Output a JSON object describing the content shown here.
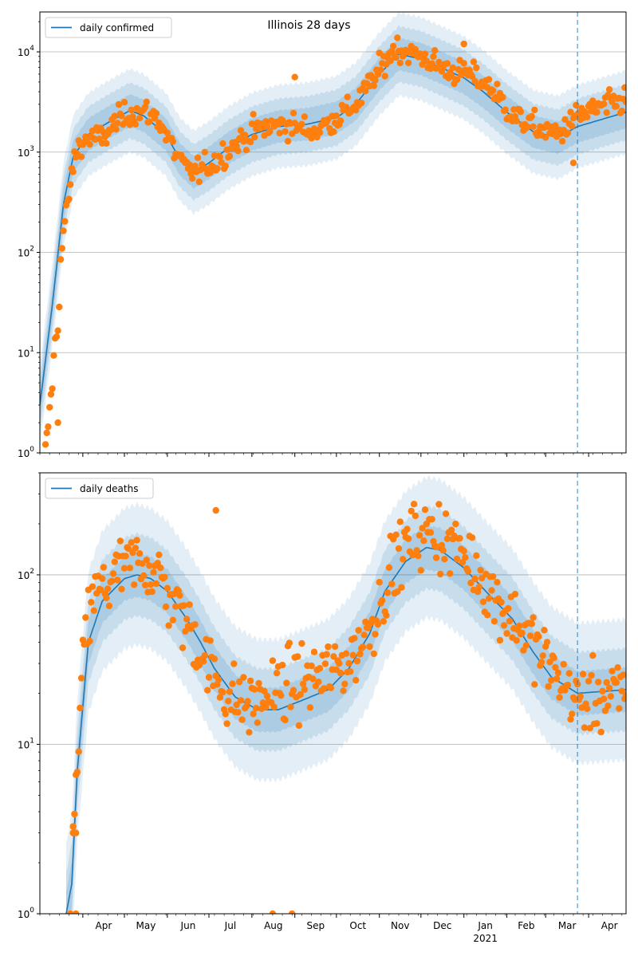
{
  "chart_data": [
    {
      "type": "line",
      "title": "Illinois 28 days",
      "legend": {
        "label": "daily confirmed",
        "placement": "top-left"
      },
      "yscale": "log",
      "ylim": [
        1,
        25000
      ],
      "yticks": [
        {
          "v": 1,
          "exp": "0"
        },
        {
          "v": 10,
          "exp": "1"
        },
        {
          "v": 100,
          "exp": "2"
        },
        {
          "v": 1000,
          "exp": "3"
        },
        {
          "v": 10000,
          "exp": "4"
        }
      ],
      "xlim": [
        "2020-03-01",
        "2021-04-28"
      ],
      "xticks": [
        {
          "date": "2020-04-01",
          "label": ""
        },
        {
          "date": "2020-05-01",
          "label": ""
        },
        {
          "date": "2020-06-01",
          "label": ""
        },
        {
          "date": "2020-07-01",
          "label": ""
        },
        {
          "date": "2020-08-01",
          "label": ""
        },
        {
          "date": "2020-09-01",
          "label": ""
        },
        {
          "date": "2020-10-01",
          "label": ""
        },
        {
          "date": "2020-11-01",
          "label": ""
        },
        {
          "date": "2020-12-01",
          "label": ""
        },
        {
          "date": "2021-01-01",
          "label": ""
        },
        {
          "date": "2021-02-01",
          "label": ""
        },
        {
          "date": "2021-03-01",
          "label": ""
        },
        {
          "date": "2021-04-01",
          "label": ""
        }
      ],
      "vline": "2021-03-24",
      "grid": "horizontal major",
      "colors": {
        "line": "#1f77b4",
        "points": "#ff7f0e",
        "band": "#1f77b4"
      },
      "series": {
        "model_anchors": [
          [
            "2020-03-01",
            3
          ],
          [
            "2020-03-10",
            30
          ],
          [
            "2020-03-18",
            300
          ],
          [
            "2020-03-25",
            900
          ],
          [
            "2020-04-05",
            1500
          ],
          [
            "2020-04-20",
            2000
          ],
          [
            "2020-05-05",
            2600
          ],
          [
            "2020-05-15",
            2300
          ],
          [
            "2020-05-31",
            1500
          ],
          [
            "2020-06-10",
            850
          ],
          [
            "2020-06-20",
            630
          ],
          [
            "2020-07-01",
            780
          ],
          [
            "2020-07-15",
            1100
          ],
          [
            "2020-08-01",
            1500
          ],
          [
            "2020-08-20",
            1800
          ],
          [
            "2020-09-10",
            1900
          ],
          [
            "2020-10-01",
            2200
          ],
          [
            "2020-10-15",
            3000
          ],
          [
            "2020-11-01",
            6000
          ],
          [
            "2020-11-15",
            9500
          ],
          [
            "2020-12-01",
            8500
          ],
          [
            "2020-12-15",
            7000
          ],
          [
            "2021-01-01",
            5500
          ],
          [
            "2021-01-15",
            4000
          ],
          [
            "2021-02-01",
            2500
          ],
          [
            "2021-02-20",
            1600
          ],
          [
            "2021-03-10",
            1400
          ],
          [
            "2021-03-24",
            1800
          ],
          [
            "2021-04-28",
            2500
          ]
        ],
        "observed_anchors": [
          [
            "2020-03-05",
            1
          ],
          [
            "2020-03-10",
            5
          ],
          [
            "2020-03-12",
            13
          ],
          [
            "2020-03-14",
            18
          ],
          [
            "2020-03-16",
            80
          ],
          [
            "2020-03-18",
            160
          ],
          [
            "2020-03-21",
            290
          ],
          [
            "2020-03-24",
            600
          ],
          [
            "2020-03-28",
            1100
          ],
          [
            "2020-04-05",
            1400
          ],
          [
            "2020-04-15",
            1350
          ],
          [
            "2020-04-25",
            2000
          ],
          [
            "2020-05-05",
            2500
          ],
          [
            "2020-05-15",
            2500
          ],
          [
            "2020-05-25",
            2200
          ],
          [
            "2020-06-05",
            1100
          ],
          [
            "2020-06-15",
            650
          ],
          [
            "2020-06-25",
            650
          ],
          [
            "2020-07-05",
            800
          ],
          [
            "2020-07-20",
            1200
          ],
          [
            "2020-08-05",
            1700
          ],
          [
            "2020-08-25",
            1900
          ],
          [
            "2020-09-15",
            1600
          ],
          [
            "2020-10-01",
            2200
          ],
          [
            "2020-10-15",
            3000
          ],
          [
            "2020-11-01",
            6500
          ],
          [
            "2020-11-12",
            11000
          ],
          [
            "2020-12-01",
            9000
          ],
          [
            "2020-12-20",
            6500
          ],
          [
            "2021-01-05",
            6000
          ],
          [
            "2021-01-20",
            4500
          ],
          [
            "2021-02-05",
            2300
          ],
          [
            "2021-02-25",
            1700
          ],
          [
            "2021-03-10",
            1500
          ],
          [
            "2021-03-24",
            2300
          ],
          [
            "2021-04-10",
            2800
          ],
          [
            "2021-04-28",
            3300
          ]
        ],
        "outliers": [
          [
            "2020-03-14",
            2
          ],
          [
            "2020-09-01",
            5600
          ],
          [
            "2021-01-01",
            12000
          ],
          [
            "2021-03-21",
            780
          ]
        ],
        "band_inner": 1.45,
        "band_mid": 1.9,
        "band_outer": 2.6
      }
    },
    {
      "type": "line",
      "title": "",
      "legend": {
        "label": "daily deaths",
        "placement": "top-left"
      },
      "yscale": "log",
      "ylim": [
        1,
        400
      ],
      "yticks": [
        {
          "v": 1,
          "exp": "0"
        },
        {
          "v": 10,
          "exp": "1"
        },
        {
          "v": 100,
          "exp": "2"
        }
      ],
      "xlim": [
        "2020-03-01",
        "2021-04-28"
      ],
      "xticks": [
        {
          "date": "2020-04-01",
          "label": "Apr"
        },
        {
          "date": "2020-05-01",
          "label": "May"
        },
        {
          "date": "2020-06-01",
          "label": "Jun"
        },
        {
          "date": "2020-07-01",
          "label": "Jul"
        },
        {
          "date": "2020-08-01",
          "label": "Aug"
        },
        {
          "date": "2020-09-01",
          "label": "Sep"
        },
        {
          "date": "2020-10-01",
          "label": "Oct"
        },
        {
          "date": "2020-11-01",
          "label": "Nov"
        },
        {
          "date": "2020-12-01",
          "label": "Dec"
        },
        {
          "date": "2021-01-01",
          "label": "Jan",
          "sublabel": "2021"
        },
        {
          "date": "2021-02-01",
          "label": "Feb"
        },
        {
          "date": "2021-03-01",
          "label": "Mar"
        },
        {
          "date": "2021-04-01",
          "label": "Apr"
        }
      ],
      "vline": "2021-03-24",
      "grid": "horizontal major",
      "colors": {
        "line": "#1f77b4",
        "points": "#ff7f0e",
        "band": "#1f77b4"
      },
      "series": {
        "model_anchors": [
          [
            "2020-03-20",
            1
          ],
          [
            "2020-03-24",
            1.5
          ],
          [
            "2020-03-28",
            7
          ],
          [
            "2020-04-05",
            40
          ],
          [
            "2020-04-15",
            70
          ],
          [
            "2020-05-01",
            95
          ],
          [
            "2020-05-10",
            100
          ],
          [
            "2020-05-20",
            95
          ],
          [
            "2020-06-01",
            80
          ],
          [
            "2020-06-15",
            55
          ],
          [
            "2020-06-25",
            40
          ],
          [
            "2020-07-05",
            28
          ],
          [
            "2020-07-20",
            19
          ],
          [
            "2020-08-05",
            16
          ],
          [
            "2020-08-20",
            16
          ],
          [
            "2020-09-05",
            18
          ],
          [
            "2020-09-25",
            21
          ],
          [
            "2020-10-10",
            28
          ],
          [
            "2020-10-25",
            45
          ],
          [
            "2020-11-05",
            80
          ],
          [
            "2020-11-20",
            120
          ],
          [
            "2020-12-05",
            145
          ],
          [
            "2020-12-15",
            140
          ],
          [
            "2021-01-01",
            110
          ],
          [
            "2021-01-20",
            75
          ],
          [
            "2021-02-05",
            55
          ],
          [
            "2021-02-20",
            35
          ],
          [
            "2021-03-05",
            25
          ],
          [
            "2021-03-24",
            20
          ],
          [
            "2021-04-28",
            21
          ]
        ],
        "observed_anchors": [
          [
            "2020-03-25",
            3
          ],
          [
            "2020-03-28",
            7
          ],
          [
            "2020-04-01",
            30
          ],
          [
            "2020-04-07",
            70
          ],
          [
            "2020-04-20",
            90
          ],
          [
            "2020-05-01",
            110
          ],
          [
            "2020-05-15",
            120
          ],
          [
            "2020-05-25",
            100
          ],
          [
            "2020-06-05",
            70
          ],
          [
            "2020-06-20",
            45
          ],
          [
            "2020-07-01",
            28
          ],
          [
            "2020-07-15",
            19
          ],
          [
            "2020-08-01",
            17
          ],
          [
            "2020-08-20",
            21
          ],
          [
            "2020-09-10",
            24
          ],
          [
            "2020-09-30",
            27
          ],
          [
            "2020-10-15",
            35
          ],
          [
            "2020-10-30",
            60
          ],
          [
            "2020-11-10",
            110
          ],
          [
            "2020-11-25",
            170
          ],
          [
            "2020-12-10",
            180
          ],
          [
            "2020-12-25",
            150
          ],
          [
            "2021-01-10",
            110
          ],
          [
            "2021-01-25",
            70
          ],
          [
            "2021-02-10",
            50
          ],
          [
            "2021-02-25",
            35
          ],
          [
            "2021-03-10",
            25
          ],
          [
            "2021-03-24",
            18
          ],
          [
            "2021-04-28",
            20
          ]
        ],
        "outliers": [
          [
            "2020-07-06",
            240
          ],
          [
            "2020-03-23",
            1
          ],
          [
            "2020-03-27",
            1
          ],
          [
            "2020-08-16",
            1
          ],
          [
            "2020-08-30",
            1
          ],
          [
            "2020-03-25",
            3
          ],
          [
            "2020-03-27",
            3
          ]
        ],
        "band_inner": 1.35,
        "band_mid": 1.75,
        "band_outer": 2.6
      }
    }
  ]
}
